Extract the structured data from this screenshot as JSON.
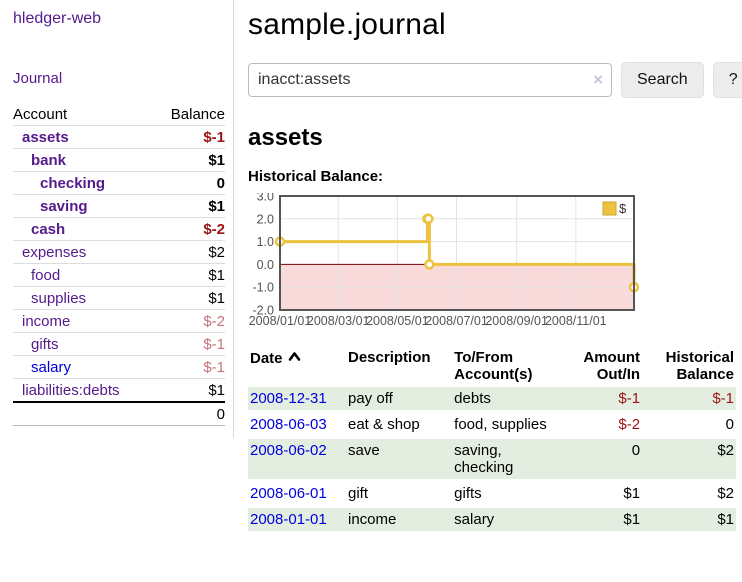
{
  "app": {
    "brand": "hledger-web",
    "journal_link": "Journal"
  },
  "header": {
    "title": "sample.journal"
  },
  "search": {
    "value": "inacct:assets",
    "clear_symbol": "×",
    "button_label": "Search",
    "help_label": "?"
  },
  "sidebar": {
    "header": {
      "account": "Account",
      "balance": "Balance"
    },
    "accounts": [
      {
        "name": "assets",
        "indent": 1,
        "bold": true,
        "balance": "$-1",
        "neg": "strong"
      },
      {
        "name": "bank",
        "indent": 2,
        "bold": true,
        "balance": "$1"
      },
      {
        "name": "checking",
        "indent": 3,
        "bold": true,
        "balance": "0"
      },
      {
        "name": "saving",
        "indent": 3,
        "bold": true,
        "balance": "$1"
      },
      {
        "name": "cash",
        "indent": 2,
        "bold": true,
        "balance": "$-2",
        "neg": "strong"
      },
      {
        "name": "expenses",
        "indent": 1,
        "bold": false,
        "balance": "$2"
      },
      {
        "name": "food",
        "indent": 2,
        "bold": false,
        "balance": "$1"
      },
      {
        "name": "supplies",
        "indent": 2,
        "bold": false,
        "balance": "$1"
      },
      {
        "name": "income",
        "indent": 1,
        "bold": false,
        "balance": "$-2",
        "neg": "muted"
      },
      {
        "name": "gifts",
        "indent": 2,
        "bold": false,
        "balance": "$-1",
        "neg": "muted"
      },
      {
        "name": "salary",
        "indent": 2,
        "bold": false,
        "balance": "$-1",
        "neg": "muted",
        "link": "blue"
      },
      {
        "name": "liabilities:debts",
        "indent": 1,
        "bold": false,
        "balance": "$1"
      }
    ],
    "total": "0"
  },
  "main": {
    "account_heading": "assets",
    "chart_label": "Historical Balance:"
  },
  "chart_data": {
    "type": "line",
    "title": "Historical Balance",
    "step": true,
    "legend_label": "$",
    "series_color": "#EDC240",
    "marker_fill": "#fffef8",
    "x_start": "2008-01-01",
    "x_end": "2008-12-31",
    "points": [
      [
        "2008-01-01",
        1
      ],
      [
        "2008-06-01",
        2
      ],
      [
        "2008-06-02",
        2
      ],
      [
        "2008-06-03",
        0
      ],
      [
        "2008-12-31",
        -1
      ]
    ],
    "ylim": [
      -2,
      3
    ],
    "yticks": [
      "3.0",
      "2.0",
      "1.0",
      "0.0",
      "-1.0",
      "-2.0"
    ],
    "xticks": [
      "2008/01/01",
      "2008/03/01",
      "2008/05/01",
      "2008/07/01",
      "2008/09/01",
      "2008/11/01"
    ],
    "negative_region_fill": "#f8dada",
    "zero_line_color": "#7f0000",
    "grid_color": "#e3e3e3",
    "border_color": "#545454",
    "tick_label_color": "#545454",
    "legend_position": "top-right",
    "grid": true
  },
  "register": {
    "headers": {
      "date": "Date",
      "description": "Description",
      "accounts": "To/From Account(s)",
      "amount": "Amount Out/In",
      "balance": "Historical Balance"
    },
    "sort_icon": "chevron-up",
    "rows": [
      {
        "date": "2008-12-31",
        "description": "pay off",
        "accounts": "debts",
        "amount": "$-1",
        "amount_neg": true,
        "balance": "$-1",
        "balance_neg": true,
        "shaded": true
      },
      {
        "date": "2008-06-03",
        "description": "eat & shop",
        "accounts": "food, supplies",
        "amount": "$-2",
        "amount_neg": true,
        "balance": "0",
        "balance_neg": false,
        "shaded": false
      },
      {
        "date": "2008-06-02",
        "description": "save",
        "accounts": "saving, checking",
        "amount": "0",
        "amount_neg": false,
        "balance": "$2",
        "balance_neg": false,
        "shaded": true
      },
      {
        "date": "2008-06-01",
        "description": "gift",
        "accounts": "gifts",
        "amount": "$1",
        "amount_neg": false,
        "balance": "$2",
        "balance_neg": false,
        "shaded": false
      },
      {
        "date": "2008-01-01",
        "description": "income",
        "accounts": "salary",
        "amount": "$1",
        "amount_neg": false,
        "balance": "$1",
        "balance_neg": false,
        "shaded": true
      }
    ]
  }
}
